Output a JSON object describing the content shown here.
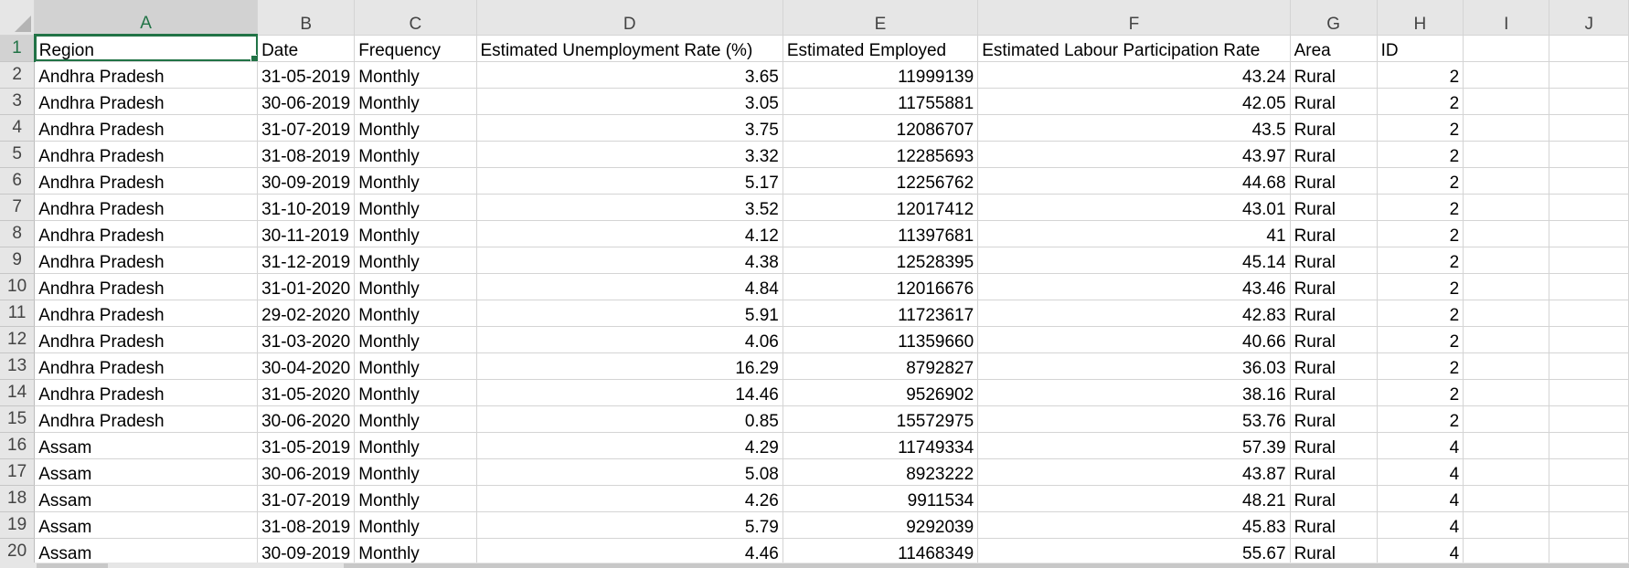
{
  "columns": [
    {
      "letter": "A",
      "name": "column-header-a"
    },
    {
      "letter": "B",
      "name": "column-header-b"
    },
    {
      "letter": "C",
      "name": "column-header-c"
    },
    {
      "letter": "D",
      "name": "column-header-d"
    },
    {
      "letter": "E",
      "name": "column-header-e"
    },
    {
      "letter": "F",
      "name": "column-header-f"
    },
    {
      "letter": "G",
      "name": "column-header-g"
    },
    {
      "letter": "H",
      "name": "column-header-h"
    },
    {
      "letter": "I",
      "name": "column-header-i"
    },
    {
      "letter": "J",
      "name": "column-header-j"
    }
  ],
  "selected_cell": "A1",
  "accent_color": "#217346",
  "rows": [
    {
      "num": "1",
      "cells": [
        "Region",
        "Date",
        "Frequency",
        "Estimated Unemployment Rate (%)",
        "Estimated Employed",
        "Estimated Labour Participation Rate",
        "Area",
        "ID",
        "",
        ""
      ]
    },
    {
      "num": "2",
      "cells": [
        "Andhra Pradesh",
        "31-05-2019",
        "Monthly",
        "3.65",
        "11999139",
        "43.24",
        "Rural",
        "2",
        "",
        ""
      ]
    },
    {
      "num": "3",
      "cells": [
        "Andhra Pradesh",
        "30-06-2019",
        "Monthly",
        "3.05",
        "11755881",
        "42.05",
        "Rural",
        "2",
        "",
        ""
      ]
    },
    {
      "num": "4",
      "cells": [
        "Andhra Pradesh",
        "31-07-2019",
        "Monthly",
        "3.75",
        "12086707",
        "43.5",
        "Rural",
        "2",
        "",
        ""
      ]
    },
    {
      "num": "5",
      "cells": [
        "Andhra Pradesh",
        "31-08-2019",
        "Monthly",
        "3.32",
        "12285693",
        "43.97",
        "Rural",
        "2",
        "",
        ""
      ]
    },
    {
      "num": "6",
      "cells": [
        "Andhra Pradesh",
        "30-09-2019",
        "Monthly",
        "5.17",
        "12256762",
        "44.68",
        "Rural",
        "2",
        "",
        ""
      ]
    },
    {
      "num": "7",
      "cells": [
        "Andhra Pradesh",
        "31-10-2019",
        "Monthly",
        "3.52",
        "12017412",
        "43.01",
        "Rural",
        "2",
        "",
        ""
      ]
    },
    {
      "num": "8",
      "cells": [
        "Andhra Pradesh",
        "30-11-2019",
        "Monthly",
        "4.12",
        "11397681",
        "41",
        "Rural",
        "2",
        "",
        ""
      ]
    },
    {
      "num": "9",
      "cells": [
        "Andhra Pradesh",
        "31-12-2019",
        "Monthly",
        "4.38",
        "12528395",
        "45.14",
        "Rural",
        "2",
        "",
        ""
      ]
    },
    {
      "num": "10",
      "cells": [
        "Andhra Pradesh",
        "31-01-2020",
        "Monthly",
        "4.84",
        "12016676",
        "43.46",
        "Rural",
        "2",
        "",
        ""
      ]
    },
    {
      "num": "11",
      "cells": [
        "Andhra Pradesh",
        "29-02-2020",
        "Monthly",
        "5.91",
        "11723617",
        "42.83",
        "Rural",
        "2",
        "",
        ""
      ]
    },
    {
      "num": "12",
      "cells": [
        "Andhra Pradesh",
        "31-03-2020",
        "Monthly",
        "4.06",
        "11359660",
        "40.66",
        "Rural",
        "2",
        "",
        ""
      ]
    },
    {
      "num": "13",
      "cells": [
        "Andhra Pradesh",
        "30-04-2020",
        "Monthly",
        "16.29",
        "8792827",
        "36.03",
        "Rural",
        "2",
        "",
        ""
      ]
    },
    {
      "num": "14",
      "cells": [
        "Andhra Pradesh",
        "31-05-2020",
        "Monthly",
        "14.46",
        "9526902",
        "38.16",
        "Rural",
        "2",
        "",
        ""
      ]
    },
    {
      "num": "15",
      "cells": [
        "Andhra Pradesh",
        "30-06-2020",
        "Monthly",
        "0.85",
        "15572975",
        "53.76",
        "Rural",
        "2",
        "",
        ""
      ]
    },
    {
      "num": "16",
      "cells": [
        "Assam",
        "31-05-2019",
        "Monthly",
        "4.29",
        "11749334",
        "57.39",
        "Rural",
        "4",
        "",
        ""
      ]
    },
    {
      "num": "17",
      "cells": [
        "Assam",
        "30-06-2019",
        "Monthly",
        "5.08",
        "8923222",
        "43.87",
        "Rural",
        "4",
        "",
        ""
      ]
    },
    {
      "num": "18",
      "cells": [
        "Assam",
        "31-07-2019",
        "Monthly",
        "4.26",
        "9911534",
        "48.21",
        "Rural",
        "4",
        "",
        ""
      ]
    },
    {
      "num": "19",
      "cells": [
        "Assam",
        "31-08-2019",
        "Monthly",
        "5.79",
        "9292039",
        "45.83",
        "Rural",
        "4",
        "",
        ""
      ]
    },
    {
      "num": "20",
      "cells": [
        "Assam",
        "30-09-2019",
        "Monthly",
        "4.46",
        "11468349",
        "55.67",
        "Rural",
        "4",
        "",
        ""
      ]
    }
  ]
}
